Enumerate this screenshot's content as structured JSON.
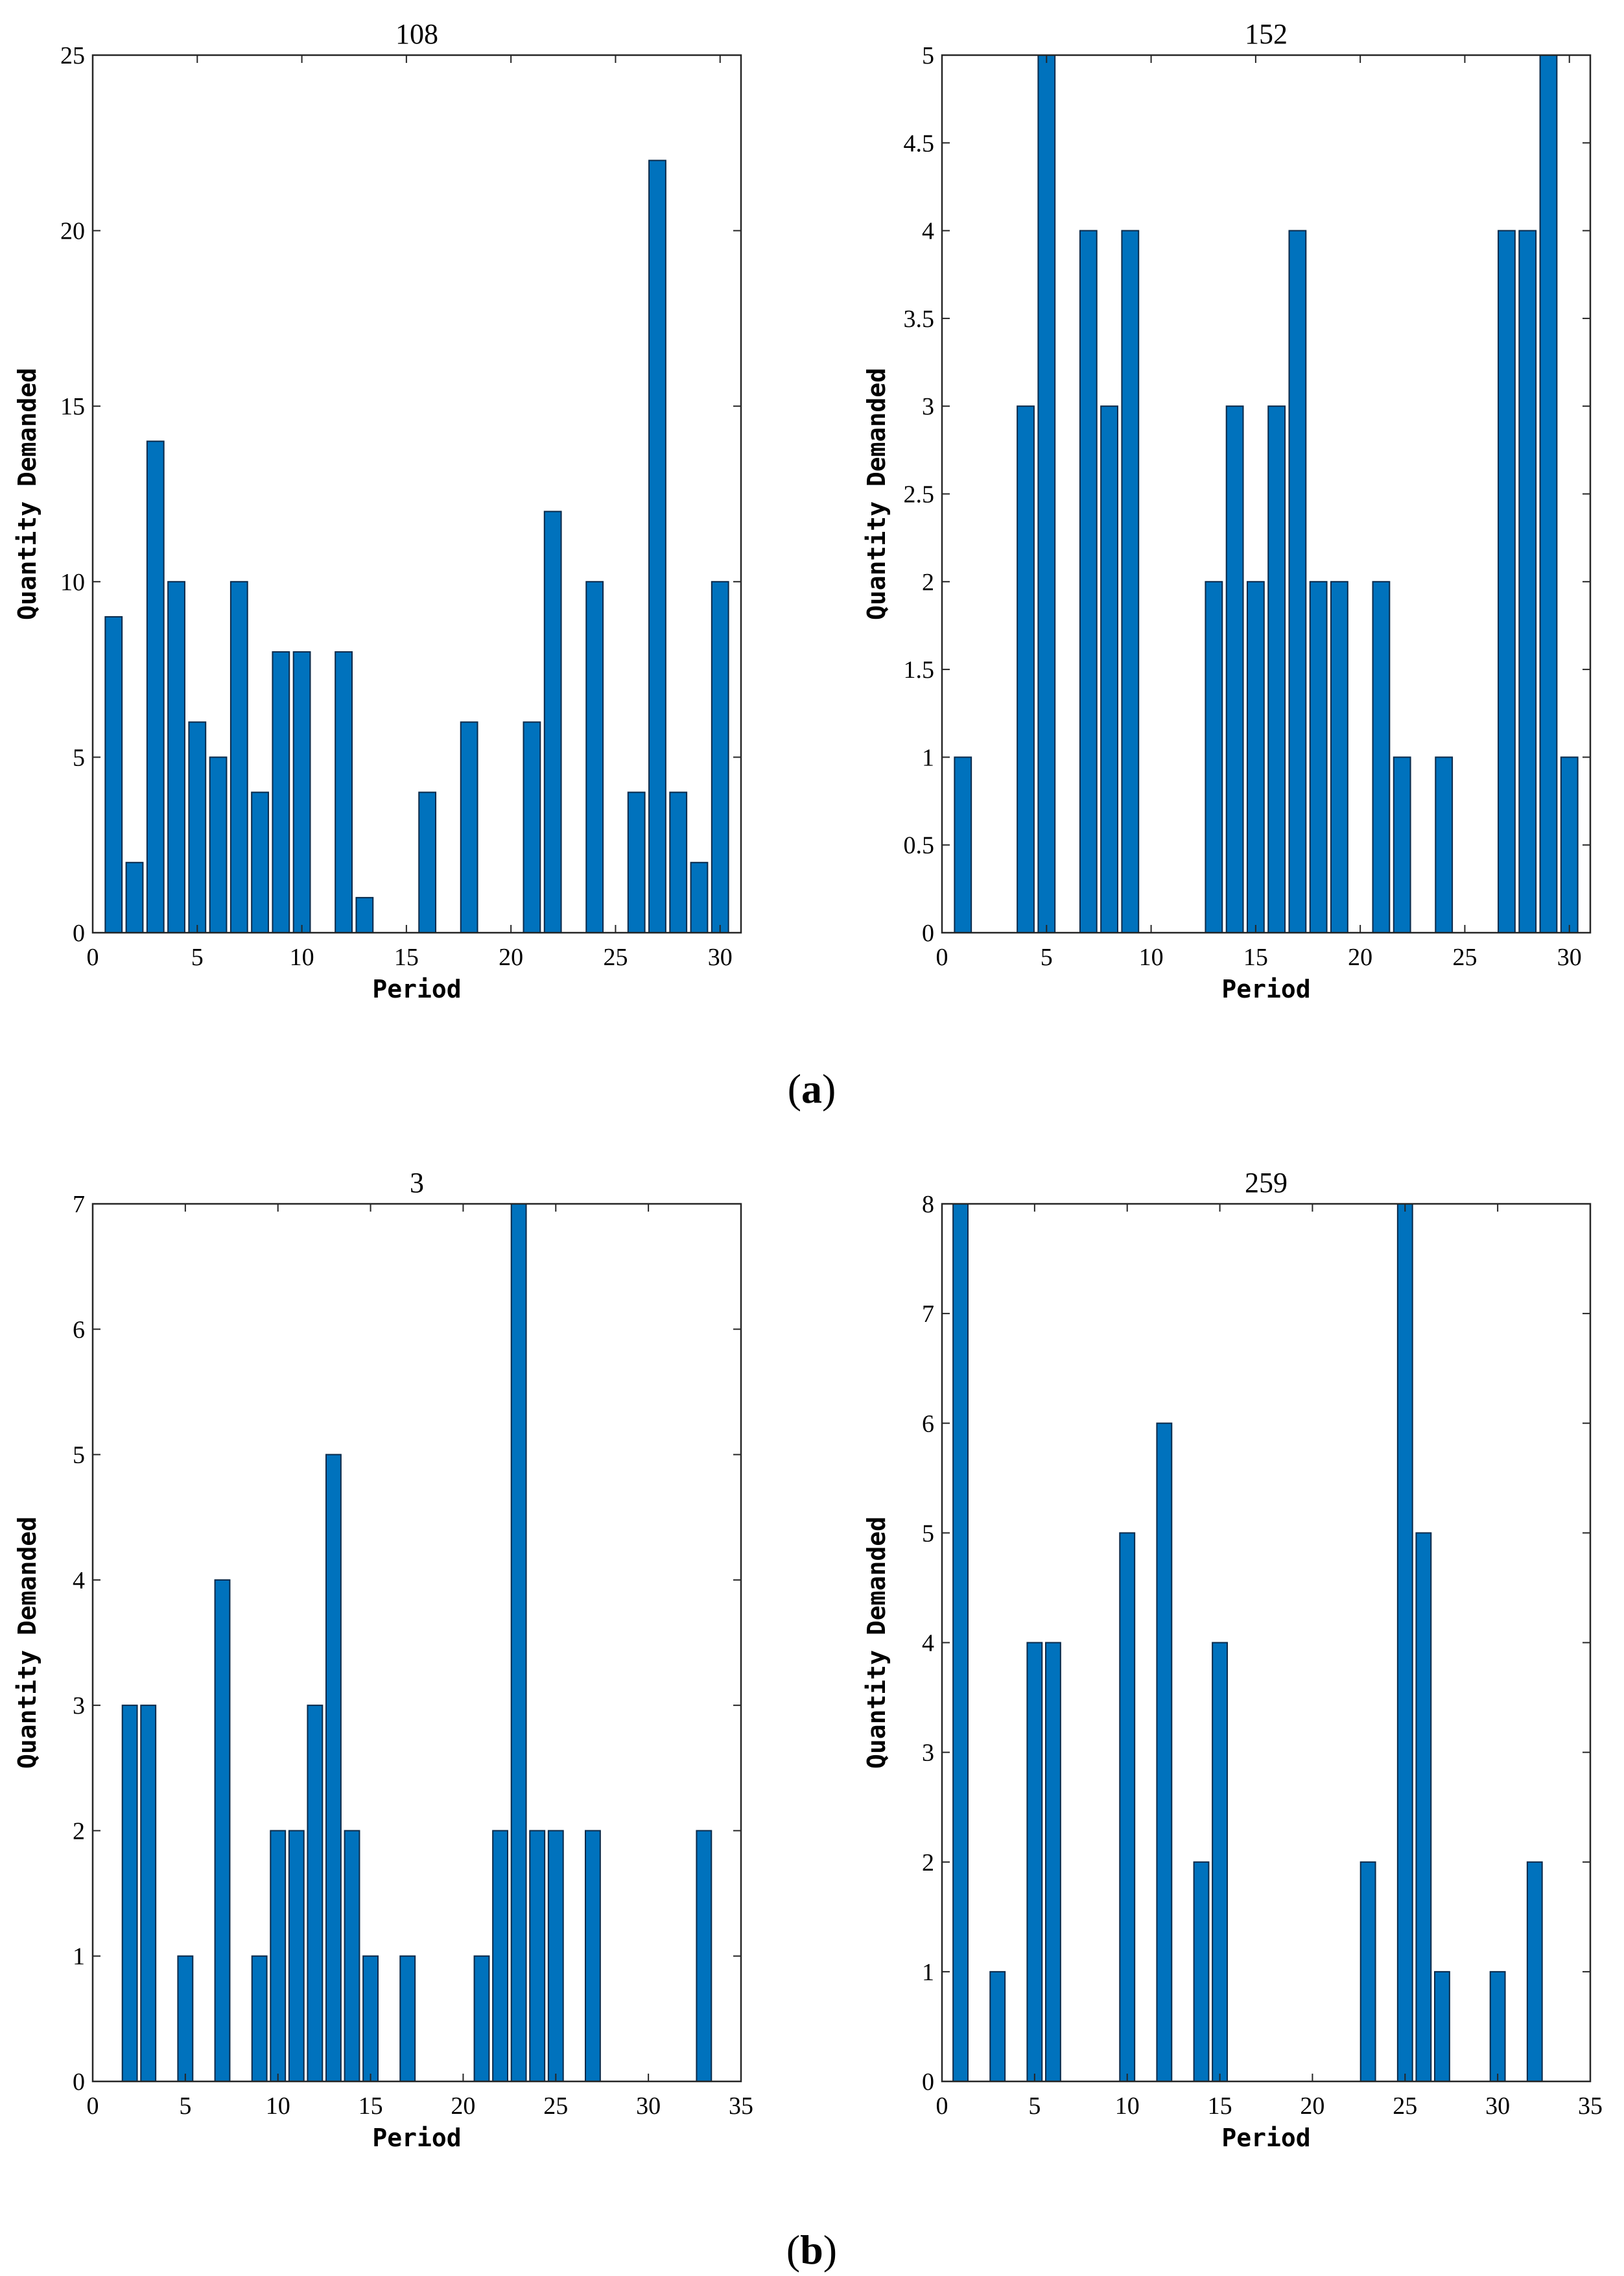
{
  "figure_labels": {
    "a_open": "(",
    "a_letter": "a",
    "a_close": ")",
    "b_open": "(",
    "b_letter": "b",
    "b_close": ")"
  },
  "colors": {
    "bar_fill": "#0072BD",
    "bar_edge": "#0A2A4A",
    "axis": "#262626"
  },
  "chart_data": [
    {
      "type": "bar",
      "title": "108",
      "xlabel": "Period",
      "ylabel": "Quantity Demanded",
      "xlim": [
        0,
        31
      ],
      "ylim": [
        0,
        25
      ],
      "xticks": [
        0,
        5,
        10,
        15,
        20,
        25,
        30
      ],
      "xtick_labels": [
        "0",
        "5",
        "10",
        "15",
        "20",
        "25",
        "30"
      ],
      "yticks": [
        0,
        5,
        10,
        15,
        20,
        25
      ],
      "ytick_labels": [
        "0",
        "5",
        "10",
        "15",
        "20",
        "25"
      ],
      "x": [
        1,
        2,
        3,
        4,
        5,
        6,
        7,
        8,
        9,
        10,
        12,
        13,
        16,
        18,
        21,
        22,
        24,
        26,
        27,
        28,
        29,
        30
      ],
      "values": [
        9,
        2,
        14,
        10,
        6,
        5,
        10,
        4,
        8,
        8,
        8,
        1,
        4,
        6,
        6,
        12,
        10,
        4,
        22,
        4,
        2,
        10
      ]
    },
    {
      "type": "bar",
      "title": "152",
      "xlabel": "Period",
      "ylabel": "Quantity Demanded",
      "xlim": [
        0,
        31
      ],
      "ylim": [
        0,
        5
      ],
      "xticks": [
        0,
        5,
        10,
        15,
        20,
        25,
        30
      ],
      "xtick_labels": [
        "0",
        "5",
        "10",
        "15",
        "20",
        "25",
        "30"
      ],
      "yticks": [
        0,
        0.5,
        1,
        1.5,
        2,
        2.5,
        3,
        3.5,
        4,
        4.5,
        5
      ],
      "ytick_labels": [
        "0",
        "0.5",
        "1",
        "1.5",
        "2",
        "2.5",
        "3",
        "3.5",
        "4",
        "4.5",
        "5"
      ],
      "x": [
        1,
        4,
        5,
        7,
        8,
        9,
        13,
        14,
        15,
        16,
        17,
        18,
        19,
        21,
        22,
        24,
        27,
        28,
        29,
        30
      ],
      "values": [
        1,
        3,
        5,
        4,
        3,
        4,
        2,
        3,
        2,
        3,
        4,
        2,
        2,
        2,
        1,
        1,
        4,
        4,
        5,
        1
      ]
    },
    {
      "type": "bar",
      "title": "3",
      "xlabel": "Period",
      "ylabel": "Quantity Demanded",
      "xlim": [
        0,
        35
      ],
      "ylim": [
        0,
        7
      ],
      "xticks": [
        0,
        5,
        10,
        15,
        20,
        25,
        30,
        35
      ],
      "xtick_labels": [
        "0",
        "5",
        "10",
        "15",
        "20",
        "25",
        "30",
        "35"
      ],
      "yticks": [
        0,
        1,
        2,
        3,
        4,
        5,
        6,
        7
      ],
      "ytick_labels": [
        "0",
        "1",
        "2",
        "3",
        "4",
        "5",
        "6",
        "7"
      ],
      "x": [
        2,
        3,
        5,
        7,
        9,
        10,
        11,
        12,
        13,
        14,
        15,
        17,
        21,
        22,
        23,
        24,
        25,
        27,
        33
      ],
      "values": [
        3,
        3,
        1,
        4,
        1,
        2,
        2,
        3,
        5,
        2,
        1,
        1,
        1,
        2,
        7,
        2,
        2,
        2,
        2
      ]
    },
    {
      "type": "bar",
      "title": "259",
      "xlabel": "Period",
      "ylabel": "Quantity Demanded",
      "xlim": [
        0,
        35
      ],
      "ylim": [
        0,
        8
      ],
      "xticks": [
        0,
        5,
        10,
        15,
        20,
        25,
        30,
        35
      ],
      "xtick_labels": [
        "0",
        "5",
        "10",
        "15",
        "20",
        "25",
        "30",
        "35"
      ],
      "yticks": [
        0,
        1,
        2,
        3,
        4,
        5,
        6,
        7,
        8
      ],
      "ytick_labels": [
        "0",
        "1",
        "2",
        "3",
        "4",
        "5",
        "6",
        "7",
        "8"
      ],
      "x": [
        1,
        3,
        5,
        6,
        10,
        12,
        14,
        15,
        23,
        25,
        26,
        27,
        30,
        32
      ],
      "values": [
        8,
        1,
        4,
        4,
        5,
        6,
        2,
        4,
        2,
        8,
        5,
        1,
        1,
        2
      ]
    }
  ]
}
